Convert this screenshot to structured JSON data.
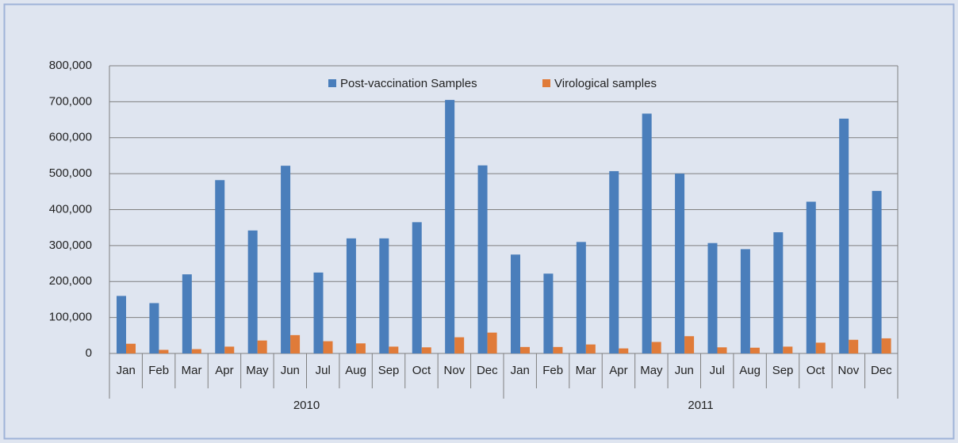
{
  "chart_data": {
    "type": "bar",
    "categories": [
      "Jan",
      "Feb",
      "Mar",
      "Apr",
      "May",
      "Jun",
      "Jul",
      "Aug",
      "Sep",
      "Oct",
      "Nov",
      "Dec",
      "Jan",
      "Feb",
      "Mar",
      "Apr",
      "May",
      "Jun",
      "Jul",
      "Aug",
      "Sep",
      "Oct",
      "Nov",
      "Dec"
    ],
    "category_groups": [
      "2010",
      "2011"
    ],
    "series": [
      {
        "name": "Post-vaccination Samples",
        "color": "#4a7ebb",
        "values": [
          160000,
          140000,
          220000,
          482000,
          342000,
          522000,
          225000,
          320000,
          320000,
          365000,
          705000,
          523000,
          275000,
          222000,
          310000,
          507000,
          667000,
          500000,
          307000,
          290000,
          337000,
          422000,
          653000,
          452000
        ]
      },
      {
        "name": "Virological samples",
        "color": "#e07b39",
        "values": [
          27000,
          10000,
          12000,
          19000,
          36000,
          51000,
          34000,
          28000,
          19000,
          17000,
          45000,
          58000,
          18000,
          18000,
          25000,
          14000,
          32000,
          48000,
          17000,
          16000,
          19000,
          30000,
          38000,
          42000
        ]
      }
    ],
    "ylim": [
      0,
      800000
    ],
    "yticks": [
      0,
      {
        "value": 100000,
        "label": "100,000"
      },
      {
        "value": 200000,
        "label": "200,000"
      },
      {
        "value": 300000,
        "label": "300,000"
      },
      {
        "value": 400000,
        "label": "400,000"
      },
      {
        "value": 500000,
        "label": "500,000"
      },
      {
        "value": 600000,
        "label": "600,000"
      },
      {
        "value": 700000,
        "label": "700,000"
      },
      {
        "value": 800000,
        "label": "800,000"
      }
    ],
    "grid": true,
    "legend": "top"
  }
}
